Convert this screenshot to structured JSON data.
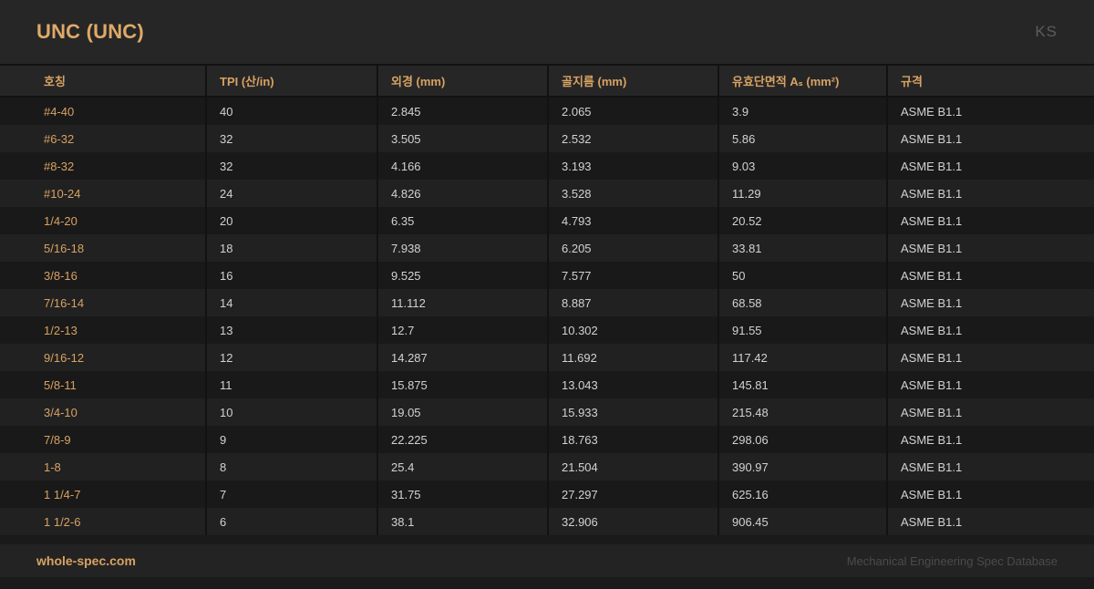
{
  "header": {
    "title": "UNC (UNC)",
    "badge": "KS"
  },
  "table": {
    "columns": [
      "호칭",
      "TPI (산/in)",
      "외경 (mm)",
      "골지름 (mm)",
      "유효단면적 Aₛ (mm²)",
      "규격"
    ],
    "column_keys": [
      "designation",
      "tpi",
      "outer-diameter",
      "minor-diameter",
      "stress-area",
      "standard"
    ],
    "rows": [
      [
        "#4-40",
        "40",
        "2.845",
        "2.065",
        "3.9",
        "ASME B1.1"
      ],
      [
        "#6-32",
        "32",
        "3.505",
        "2.532",
        "5.86",
        "ASME B1.1"
      ],
      [
        "#8-32",
        "32",
        "4.166",
        "3.193",
        "9.03",
        "ASME B1.1"
      ],
      [
        "#10-24",
        "24",
        "4.826",
        "3.528",
        "11.29",
        "ASME B1.1"
      ],
      [
        "1/4-20",
        "20",
        "6.35",
        "4.793",
        "20.52",
        "ASME B1.1"
      ],
      [
        "5/16-18",
        "18",
        "7.938",
        "6.205",
        "33.81",
        "ASME B1.1"
      ],
      [
        "3/8-16",
        "16",
        "9.525",
        "7.577",
        "50",
        "ASME B1.1"
      ],
      [
        "7/16-14",
        "14",
        "11.112",
        "8.887",
        "68.58",
        "ASME B1.1"
      ],
      [
        "1/2-13",
        "13",
        "12.7",
        "10.302",
        "91.55",
        "ASME B1.1"
      ],
      [
        "9/16-12",
        "12",
        "14.287",
        "11.692",
        "117.42",
        "ASME B1.1"
      ],
      [
        "5/8-11",
        "11",
        "15.875",
        "13.043",
        "145.81",
        "ASME B1.1"
      ],
      [
        "3/4-10",
        "10",
        "19.05",
        "15.933",
        "215.48",
        "ASME B1.1"
      ],
      [
        "7/8-9",
        "9",
        "22.225",
        "18.763",
        "298.06",
        "ASME B1.1"
      ],
      [
        "1-8",
        "8",
        "25.4",
        "21.504",
        "390.97",
        "ASME B1.1"
      ],
      [
        "1 1/4-7",
        "7",
        "31.75",
        "27.297",
        "625.16",
        "ASME B1.1"
      ],
      [
        "1 1/2-6",
        "6",
        "38.1",
        "32.906",
        "906.45",
        "ASME B1.1"
      ]
    ]
  },
  "footer": {
    "brand": "whole-spec.com",
    "tagline": "Mechanical Engineering Spec Database"
  },
  "colors": {
    "accent": "#d8a263",
    "title_accent": "#dfa969",
    "page_bg": "#1a1a1a",
    "panel_bg": "#262626",
    "row_dark": "#191919",
    "row_light": "#212121",
    "divider": "#121212",
    "body_text": "#d2d2d2",
    "muted_text": "#5c5c5c",
    "footer_bg": "#232323"
  }
}
